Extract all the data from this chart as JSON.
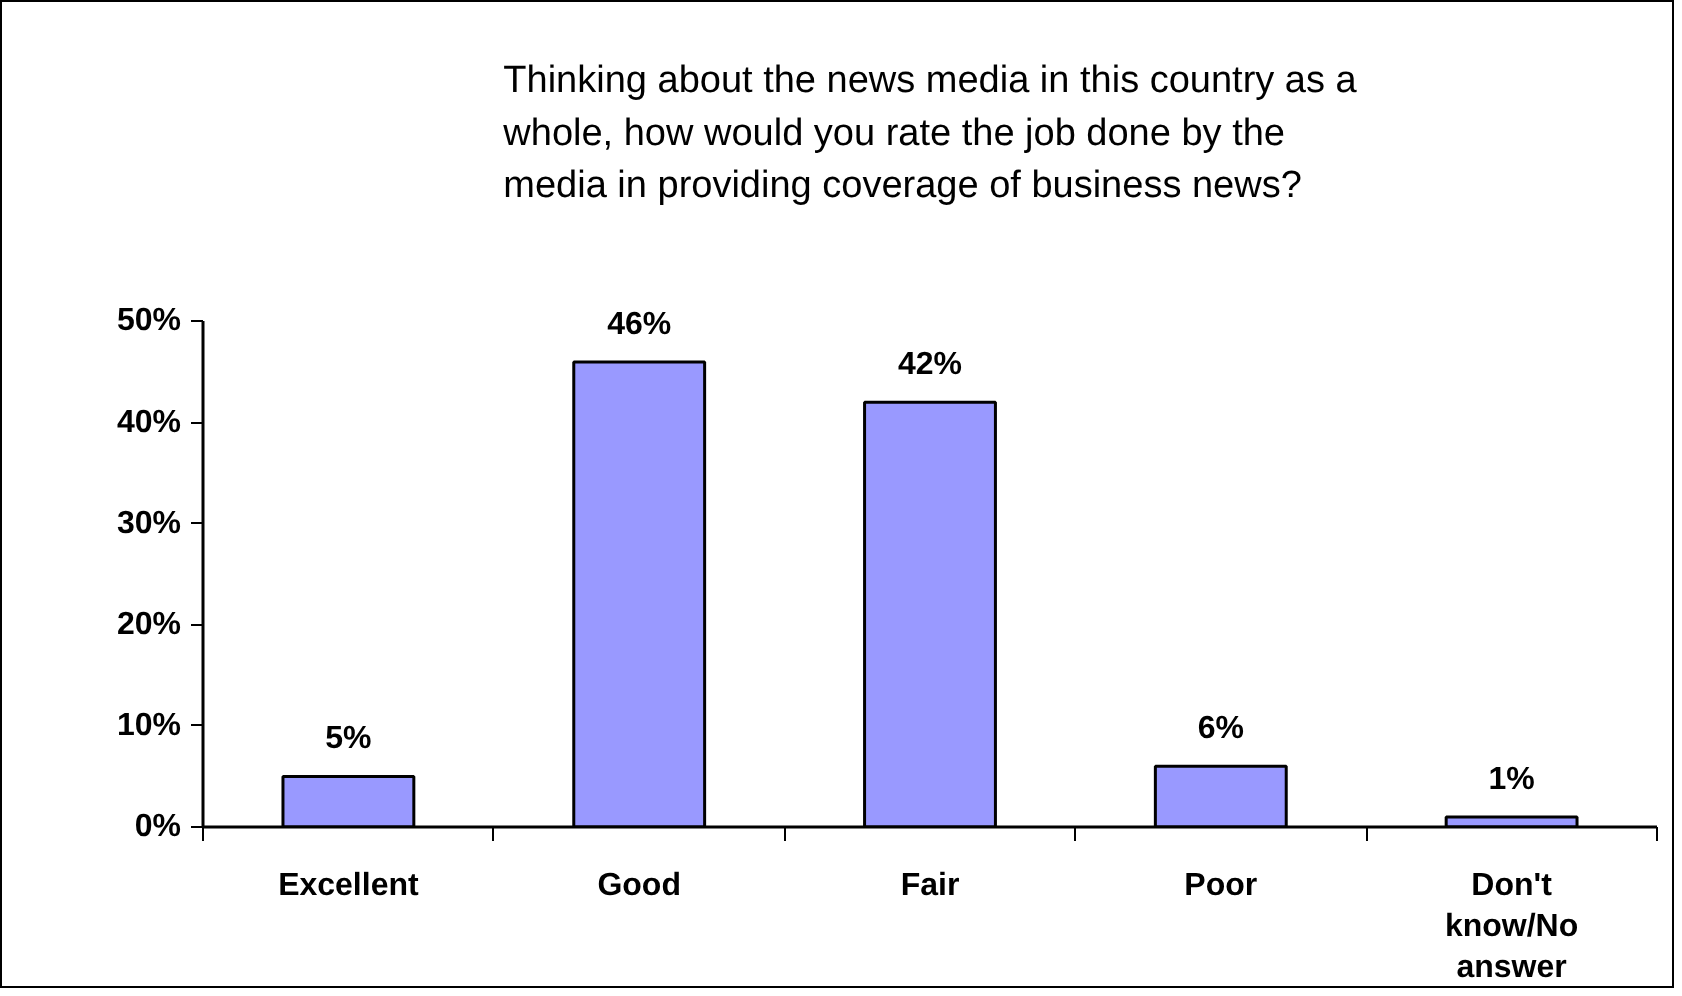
{
  "chart_data": {
    "type": "bar",
    "title": "Thinking about the news media in this country as a whole, how would you rate the job done by the media in providing coverage of business news?",
    "categories": [
      "Excellent",
      "Good",
      "Fair",
      "Poor",
      "Don't know/No answer"
    ],
    "values": [
      5,
      46,
      42,
      6,
      1
    ],
    "value_labels": [
      "5%",
      "46%",
      "42%",
      "6%",
      "1%"
    ],
    "color": "#9999ff",
    "ylim": [
      0,
      50
    ],
    "yticks": [
      {
        "value": 0,
        "label": "0%"
      },
      {
        "value": 10,
        "label": "10%"
      },
      {
        "value": 20,
        "label": "20%"
      },
      {
        "value": 30,
        "label": "30%"
      },
      {
        "value": 40,
        "label": "40%"
      },
      {
        "value": 50,
        "label": "50%"
      }
    ],
    "grid": false
  }
}
